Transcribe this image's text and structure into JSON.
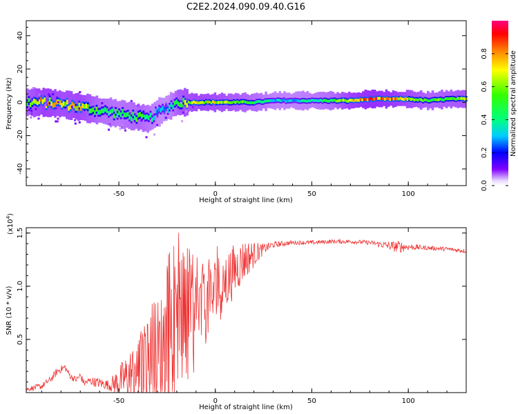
{
  "title": "C2E2.2024.090.09.40.G16",
  "chart_data": [
    {
      "type": "heatmap",
      "title": "C2E2.2024.090.09.40.G16",
      "xlabel": "Height of straight line (km)",
      "ylabel": "Frequency (Hz)",
      "xlim": [
        -98,
        130
      ],
      "ylim": [
        -50,
        49
      ],
      "x_ticks": [
        -50,
        0,
        50,
        100
      ],
      "y_ticks": [
        -40,
        -20,
        0,
        20,
        40
      ],
      "grid": false,
      "colorbar": {
        "label": "Normalized spectral amplitude",
        "range": [
          0,
          1
        ],
        "ticks": [
          0.0,
          0.2,
          0.4,
          0.6,
          0.8
        ],
        "colormap": "rainbow (white at 0, magenta at 1)"
      },
      "ridge": {
        "description": "dominant frequency track of normalized spectral amplitude",
        "x": [
          -98,
          -90,
          -80,
          -70,
          -60,
          -50,
          -45,
          -40,
          -35,
          -30,
          -25,
          -20,
          -10,
          0,
          10,
          20,
          30,
          40,
          50,
          60,
          70,
          80,
          90,
          100,
          110,
          120,
          130
        ],
        "y": [
          0,
          0,
          -1,
          -3,
          -5,
          -7,
          -8,
          -9,
          -10,
          -6,
          -3,
          0,
          0,
          0,
          0,
          0,
          1,
          1,
          1,
          1,
          1,
          2,
          2,
          2,
          1,
          2,
          2
        ],
        "amplitude": [
          0.6,
          0.8,
          0.7,
          0.75,
          0.5,
          0.45,
          0.5,
          0.55,
          0.45,
          0.3,
          0.3,
          0.6,
          0.75,
          0.7,
          0.6,
          0.5,
          0.35,
          0.35,
          0.4,
          0.5,
          0.8,
          0.9,
          0.85,
          0.7,
          0.55,
          0.6,
          0.65
        ]
      }
    },
    {
      "type": "line",
      "xlabel": "Height of straight line (km)",
      "ylabel": "SNR (10 * v/v)",
      "scale_note": "(x10",
      "scale_exp": "4",
      "scale_close": ")",
      "xlim": [
        -98,
        130
      ],
      "ylim": [
        0.0,
        1.55
      ],
      "x_ticks": [
        -50,
        0,
        50,
        100
      ],
      "y_ticks": [
        0.5,
        1.0,
        1.5
      ],
      "y_tick_labels": [
        "0.5",
        "1.0",
        "1.5"
      ],
      "grid": false,
      "color": "#ee3333",
      "envelope": {
        "x": [
          -98,
          -90,
          -85,
          -82,
          -78,
          -75,
          -72,
          -70,
          -68,
          -65,
          -60,
          -55,
          -50,
          -45,
          -40,
          -35,
          -30,
          -25,
          -20,
          -15,
          -10,
          -5,
          0,
          5,
          10,
          15,
          20,
          25,
          30,
          40,
          50,
          60,
          70,
          80,
          90,
          95,
          100,
          110,
          120,
          130
        ],
        "base": [
          0.03,
          0.06,
          0.13,
          0.2,
          0.24,
          0.15,
          0.12,
          0.16,
          0.09,
          0.11,
          0.09,
          0.07,
          0.1,
          0.15,
          0.2,
          0.28,
          0.35,
          0.45,
          0.55,
          0.6,
          0.7,
          0.8,
          0.95,
          1.05,
          1.15,
          1.25,
          1.3,
          1.35,
          1.39,
          1.41,
          1.41,
          1.42,
          1.42,
          1.41,
          1.38,
          1.37,
          1.37,
          1.36,
          1.35,
          1.33
        ],
        "spread": [
          0.02,
          0.03,
          0.03,
          0.04,
          0.03,
          0.03,
          0.03,
          0.04,
          0.03,
          0.04,
          0.05,
          0.05,
          0.15,
          0.25,
          0.35,
          0.45,
          0.55,
          0.6,
          0.7,
          0.6,
          0.5,
          0.35,
          0.35,
          0.3,
          0.25,
          0.2,
          0.12,
          0.05,
          0.03,
          0.02,
          0.02,
          0.02,
          0.02,
          0.02,
          0.04,
          0.06,
          0.03,
          0.02,
          0.02,
          0.02
        ]
      }
    }
  ]
}
